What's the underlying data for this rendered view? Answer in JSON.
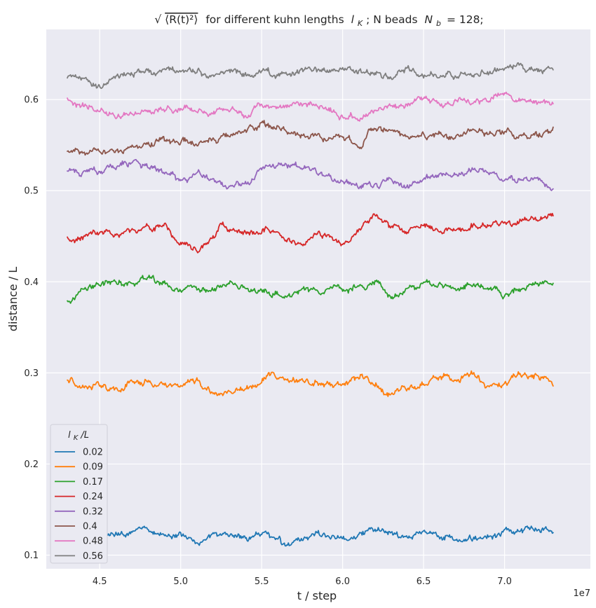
{
  "chart_data": {
    "type": "line",
    "title": "√⟨R(t)²⟩ for different kuhn lengths l_K; N beads N_b = 128;",
    "title_parts": {
      "sqrt_expr": "⟨R(t)²⟩",
      "text_mid": "for different kuhn lengths",
      "lk_sym": "l",
      "lk_sub": "K",
      "text_after_lk": "; N beads",
      "nb_sym": "N",
      "nb_sub": "b",
      "text_end": "= 128;"
    },
    "xlabel": "t / step",
    "ylabel": "distance / L",
    "x_offset_label": "1e7",
    "xlim": [
      4.17,
      7.53
    ],
    "ylim": [
      0.085,
      0.677
    ],
    "xticks": [
      4.5,
      5.0,
      5.5,
      6.0,
      6.5,
      7.0
    ],
    "xtick_labels": [
      "4.5",
      "5.0",
      "5.5",
      "6.0",
      "6.5",
      "7.0"
    ],
    "yticks": [
      0.1,
      0.2,
      0.3,
      0.4,
      0.5,
      0.6
    ],
    "ytick_labels": [
      "0.1",
      "0.2",
      "0.3",
      "0.4",
      "0.5",
      "0.6"
    ],
    "grid": true,
    "legend": {
      "placement": "lower-left",
      "title_sym": "l",
      "title_sub": "K",
      "title_tail": "/L"
    },
    "x_range": [
      4.3,
      7.3
    ],
    "series": [
      {
        "name": "0.02",
        "color": "#1f77b4",
        "points": [
          [
            4.3,
            0.126
          ],
          [
            4.4,
            0.123
          ],
          [
            4.5,
            0.124
          ],
          [
            4.6,
            0.121
          ],
          [
            4.7,
            0.127
          ],
          [
            4.8,
            0.128
          ],
          [
            4.9,
            0.12
          ],
          [
            5.0,
            0.125
          ],
          [
            5.1,
            0.117
          ],
          [
            5.2,
            0.12
          ],
          [
            5.3,
            0.122
          ],
          [
            5.4,
            0.12
          ],
          [
            5.5,
            0.126
          ],
          [
            5.6,
            0.12
          ],
          [
            5.65,
            0.111
          ],
          [
            5.75,
            0.118
          ],
          [
            5.85,
            0.123
          ],
          [
            5.95,
            0.121
          ],
          [
            6.05,
            0.119
          ],
          [
            6.15,
            0.126
          ],
          [
            6.25,
            0.125
          ],
          [
            6.35,
            0.123
          ],
          [
            6.45,
            0.121
          ],
          [
            6.55,
            0.124
          ],
          [
            6.65,
            0.12
          ],
          [
            6.75,
            0.117
          ],
          [
            6.85,
            0.12
          ],
          [
            6.95,
            0.121
          ],
          [
            7.05,
            0.126
          ],
          [
            7.15,
            0.13
          ],
          [
            7.25,
            0.126
          ],
          [
            7.3,
            0.124
          ]
        ]
      },
      {
        "name": "0.09",
        "color": "#ff7f0e",
        "points": [
          [
            4.3,
            0.293
          ],
          [
            4.4,
            0.281
          ],
          [
            4.5,
            0.287
          ],
          [
            4.6,
            0.283
          ],
          [
            4.7,
            0.29
          ],
          [
            4.8,
            0.288
          ],
          [
            4.9,
            0.288
          ],
          [
            5.0,
            0.286
          ],
          [
            5.1,
            0.293
          ],
          [
            5.15,
            0.284
          ],
          [
            5.25,
            0.277
          ],
          [
            5.35,
            0.281
          ],
          [
            5.45,
            0.286
          ],
          [
            5.55,
            0.297
          ],
          [
            5.65,
            0.294
          ],
          [
            5.75,
            0.294
          ],
          [
            5.85,
            0.289
          ],
          [
            5.95,
            0.288
          ],
          [
            6.05,
            0.292
          ],
          [
            6.15,
            0.296
          ],
          [
            6.2,
            0.287
          ],
          [
            6.3,
            0.276
          ],
          [
            6.4,
            0.284
          ],
          [
            6.5,
            0.289
          ],
          [
            6.6,
            0.295
          ],
          [
            6.7,
            0.291
          ],
          [
            6.8,
            0.296
          ],
          [
            6.9,
            0.283
          ],
          [
            7.0,
            0.288
          ],
          [
            7.1,
            0.297
          ],
          [
            7.2,
            0.298
          ],
          [
            7.3,
            0.289
          ]
        ]
      },
      {
        "name": "0.17",
        "color": "#2ca02c",
        "points": [
          [
            4.3,
            0.379
          ],
          [
            4.4,
            0.391
          ],
          [
            4.5,
            0.397
          ],
          [
            4.6,
            0.402
          ],
          [
            4.7,
            0.398
          ],
          [
            4.8,
            0.403
          ],
          [
            4.9,
            0.396
          ],
          [
            5.0,
            0.393
          ],
          [
            5.1,
            0.394
          ],
          [
            5.2,
            0.39
          ],
          [
            5.3,
            0.397
          ],
          [
            5.4,
            0.394
          ],
          [
            5.5,
            0.391
          ],
          [
            5.6,
            0.388
          ],
          [
            5.7,
            0.385
          ],
          [
            5.8,
            0.391
          ],
          [
            5.9,
            0.393
          ],
          [
            6.0,
            0.391
          ],
          [
            6.1,
            0.396
          ],
          [
            6.2,
            0.399
          ],
          [
            6.3,
            0.383
          ],
          [
            6.4,
            0.392
          ],
          [
            6.5,
            0.397
          ],
          [
            6.6,
            0.394
          ],
          [
            6.7,
            0.391
          ],
          [
            6.8,
            0.398
          ],
          [
            6.9,
            0.394
          ],
          [
            7.0,
            0.386
          ],
          [
            7.1,
            0.393
          ],
          [
            7.2,
            0.397
          ],
          [
            7.3,
            0.399
          ]
        ]
      },
      {
        "name": "0.24",
        "color": "#d62728",
        "points": [
          [
            4.3,
            0.446
          ],
          [
            4.4,
            0.451
          ],
          [
            4.5,
            0.454
          ],
          [
            4.6,
            0.453
          ],
          [
            4.7,
            0.455
          ],
          [
            4.8,
            0.458
          ],
          [
            4.9,
            0.46
          ],
          [
            5.0,
            0.442
          ],
          [
            5.1,
            0.438
          ],
          [
            5.2,
            0.447
          ],
          [
            5.25,
            0.462
          ],
          [
            5.35,
            0.455
          ],
          [
            5.45,
            0.452
          ],
          [
            5.55,
            0.457
          ],
          [
            5.65,
            0.447
          ],
          [
            5.75,
            0.441
          ],
          [
            5.85,
            0.453
          ],
          [
            5.95,
            0.447
          ],
          [
            6.0,
            0.44
          ],
          [
            6.1,
            0.456
          ],
          [
            6.2,
            0.47
          ],
          [
            6.3,
            0.462
          ],
          [
            6.4,
            0.455
          ],
          [
            6.5,
            0.463
          ],
          [
            6.6,
            0.454
          ],
          [
            6.7,
            0.458
          ],
          [
            6.8,
            0.462
          ],
          [
            6.9,
            0.464
          ],
          [
            7.0,
            0.463
          ],
          [
            7.1,
            0.465
          ],
          [
            7.2,
            0.469
          ],
          [
            7.3,
            0.47
          ]
        ]
      },
      {
        "name": "0.32",
        "color": "#9467bd",
        "points": [
          [
            4.3,
            0.521
          ],
          [
            4.4,
            0.52
          ],
          [
            4.5,
            0.523
          ],
          [
            4.6,
            0.528
          ],
          [
            4.7,
            0.532
          ],
          [
            4.8,
            0.525
          ],
          [
            4.9,
            0.519
          ],
          [
            5.0,
            0.51
          ],
          [
            5.1,
            0.516
          ],
          [
            5.2,
            0.511
          ],
          [
            5.3,
            0.505
          ],
          [
            5.4,
            0.51
          ],
          [
            5.5,
            0.521
          ],
          [
            5.6,
            0.527
          ],
          [
            5.7,
            0.526
          ],
          [
            5.8,
            0.522
          ],
          [
            5.9,
            0.515
          ],
          [
            6.0,
            0.512
          ],
          [
            6.1,
            0.502
          ],
          [
            6.2,
            0.506
          ],
          [
            6.3,
            0.51
          ],
          [
            6.4,
            0.506
          ],
          [
            6.5,
            0.513
          ],
          [
            6.6,
            0.516
          ],
          [
            6.7,
            0.515
          ],
          [
            6.8,
            0.521
          ],
          [
            6.9,
            0.519
          ],
          [
            7.0,
            0.514
          ],
          [
            7.1,
            0.513
          ],
          [
            7.2,
            0.511
          ],
          [
            7.3,
            0.502
          ]
        ]
      },
      {
        "name": "0.4",
        "color": "#8c564b",
        "points": [
          [
            4.3,
            0.545
          ],
          [
            4.4,
            0.541
          ],
          [
            4.5,
            0.544
          ],
          [
            4.6,
            0.543
          ],
          [
            4.7,
            0.547
          ],
          [
            4.8,
            0.551
          ],
          [
            4.9,
            0.556
          ],
          [
            5.0,
            0.555
          ],
          [
            5.1,
            0.549
          ],
          [
            5.2,
            0.555
          ],
          [
            5.3,
            0.56
          ],
          [
            5.4,
            0.566
          ],
          [
            5.5,
            0.57
          ],
          [
            5.6,
            0.568
          ],
          [
            5.7,
            0.562
          ],
          [
            5.8,
            0.563
          ],
          [
            5.9,
            0.557
          ],
          [
            6.0,
            0.556
          ],
          [
            6.1,
            0.551
          ],
          [
            6.2,
            0.567
          ],
          [
            6.3,
            0.566
          ],
          [
            6.4,
            0.559
          ],
          [
            6.5,
            0.561
          ],
          [
            6.6,
            0.562
          ],
          [
            6.7,
            0.559
          ],
          [
            6.8,
            0.566
          ],
          [
            6.9,
            0.563
          ],
          [
            7.0,
            0.565
          ],
          [
            7.1,
            0.562
          ],
          [
            7.2,
            0.561
          ],
          [
            7.3,
            0.565
          ]
        ]
      },
      {
        "name": "0.48",
        "color": "#e377c2",
        "points": [
          [
            4.3,
            0.599
          ],
          [
            4.4,
            0.593
          ],
          [
            4.5,
            0.589
          ],
          [
            4.6,
            0.583
          ],
          [
            4.7,
            0.585
          ],
          [
            4.8,
            0.587
          ],
          [
            4.9,
            0.589
          ],
          [
            5.0,
            0.59
          ],
          [
            5.1,
            0.588
          ],
          [
            5.2,
            0.587
          ],
          [
            5.3,
            0.588
          ],
          [
            5.4,
            0.585
          ],
          [
            5.5,
            0.591
          ],
          [
            5.6,
            0.591
          ],
          [
            5.7,
            0.595
          ],
          [
            5.8,
            0.594
          ],
          [
            5.9,
            0.592
          ],
          [
            6.0,
            0.581
          ],
          [
            6.1,
            0.58
          ],
          [
            6.2,
            0.588
          ],
          [
            6.3,
            0.592
          ],
          [
            6.4,
            0.594
          ],
          [
            6.5,
            0.603
          ],
          [
            6.6,
            0.596
          ],
          [
            6.7,
            0.597
          ],
          [
            6.8,
            0.596
          ],
          [
            6.9,
            0.6
          ],
          [
            7.0,
            0.607
          ],
          [
            7.1,
            0.6
          ],
          [
            7.2,
            0.598
          ],
          [
            7.3,
            0.597
          ]
        ]
      },
      {
        "name": "0.56",
        "color": "#7f7f7f",
        "points": [
          [
            4.3,
            0.626
          ],
          [
            4.4,
            0.621
          ],
          [
            4.5,
            0.613
          ],
          [
            4.6,
            0.623
          ],
          [
            4.7,
            0.629
          ],
          [
            4.8,
            0.629
          ],
          [
            4.9,
            0.629
          ],
          [
            5.0,
            0.636
          ],
          [
            5.1,
            0.629
          ],
          [
            5.2,
            0.627
          ],
          [
            5.3,
            0.631
          ],
          [
            5.4,
            0.628
          ],
          [
            5.5,
            0.632
          ],
          [
            5.6,
            0.627
          ],
          [
            5.7,
            0.628
          ],
          [
            5.8,
            0.634
          ],
          [
            5.9,
            0.631
          ],
          [
            6.0,
            0.633
          ],
          [
            6.1,
            0.63
          ],
          [
            6.2,
            0.629
          ],
          [
            6.3,
            0.627
          ],
          [
            6.4,
            0.632
          ],
          [
            6.5,
            0.626
          ],
          [
            6.6,
            0.628
          ],
          [
            6.7,
            0.627
          ],
          [
            6.8,
            0.628
          ],
          [
            6.9,
            0.629
          ],
          [
            7.0,
            0.633
          ],
          [
            7.1,
            0.633
          ],
          [
            7.2,
            0.632
          ],
          [
            7.3,
            0.632
          ]
        ]
      }
    ]
  }
}
